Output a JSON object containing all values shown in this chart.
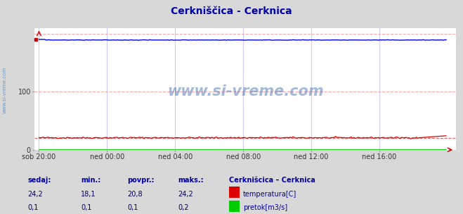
{
  "title": "Cerkniščica - Cerknica",
  "title_color": "#0000aa",
  "bg_color": "#d8d8d8",
  "plot_bg_color": "#ffffff",
  "grid_color_h": "#ffaaaa",
  "grid_color_v": "#ccccff",
  "x_tick_labels": [
    "sob 20:00",
    "ned 00:00",
    "ned 04:00",
    "ned 08:00",
    "ned 12:00",
    "ned 16:00"
  ],
  "x_tick_positions": [
    0,
    48,
    96,
    144,
    192,
    240
  ],
  "n_points": 288,
  "ylim_min": 0,
  "ylim_max": 200,
  "temp_color": "#dd0000",
  "temp_dashed_color": "#dd6666",
  "flow_color": "#00cc00",
  "height_color": "#0000dd",
  "watermark_color": "#3366aa",
  "watermark_text": "www.si-vreme.com",
  "sidebar_text": "www.si-vreme.com",
  "temp_mean": 20.8,
  "temp_min": 18.1,
  "temp_max": 24.2,
  "temp_current": 24.2,
  "flow_mean": 0.1,
  "flow_min": 0.1,
  "flow_max": 0.2,
  "flow_current": 0.1,
  "height_mean": 189,
  "height_min": 188,
  "height_max": 190,
  "height_current": 189,
  "legend_title": "Cerknišcica - Cerknica",
  "label_color": "#0000aa",
  "value_color": "#000055",
  "comma_decimal": true
}
